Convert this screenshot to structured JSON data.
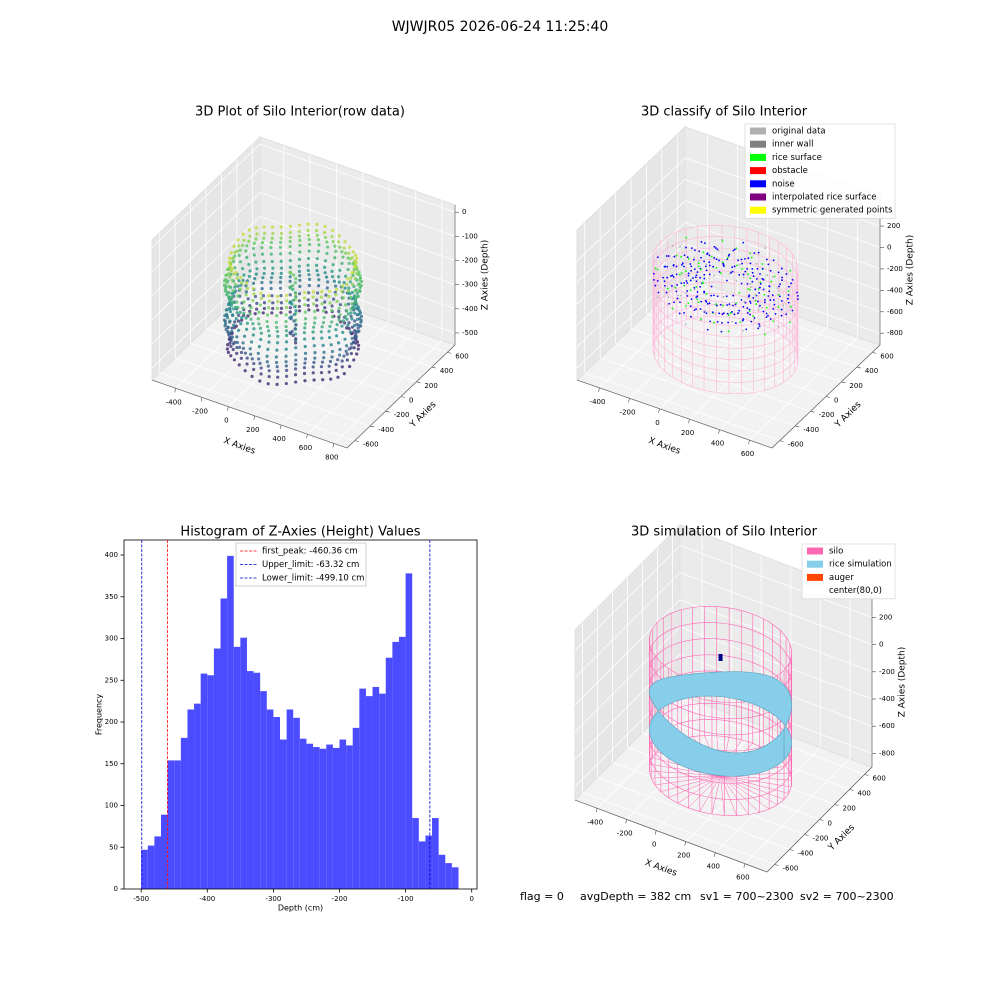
{
  "title": "WJWJR05 2026-06-24 11:25:40",
  "footer": [
    "flag = 0",
    "avgDepth = 382 cm",
    "sv1 = 700~2300",
    "sv2 = 700~2300"
  ],
  "chart_data": [
    {
      "type": "scatter3d",
      "title": "3D Plot of Silo Interior(row data)",
      "xlabel": "X Axies",
      "ylabel": "Y Axies",
      "zlabel": "Z Axies (Depth)",
      "xlim": [
        -580,
        900
      ],
      "ylim": [
        -700,
        700
      ],
      "zlim": [
        -550,
        30
      ],
      "xticks": [
        -400,
        -200,
        0,
        200,
        400,
        600,
        800
      ],
      "yticks": [
        -600,
        -400,
        -200,
        0,
        200,
        400,
        600
      ],
      "zticks": [
        0,
        -100,
        -200,
        -300,
        -400,
        -500
      ]
    },
    {
      "type": "classify3d",
      "title": "3D classify of Silo Interior",
      "xlabel": "X Axies",
      "ylabel": "Y Axies",
      "zlabel": "Z Axies (Depth)",
      "xlim": [
        -550,
        750
      ],
      "ylim": [
        -700,
        700
      ],
      "zlim": [
        -910,
        490
      ],
      "xticks": [
        -400,
        -200,
        0,
        200,
        400,
        600
      ],
      "yticks": [
        -600,
        -400,
        -200,
        0,
        200,
        400,
        600
      ],
      "zticks": [
        200,
        0,
        -200,
        -400,
        -600,
        -800
      ],
      "legend": [
        {
          "label": "original data",
          "color": "#b0b0b0"
        },
        {
          "label": "inner wall",
          "color": "#808080"
        },
        {
          "label": "rice surface",
          "color": "#00ff00"
        },
        {
          "label": "obstacle",
          "color": "#ff0000"
        },
        {
          "label": "noise",
          "color": "#0000ff"
        },
        {
          "label": "interpolated rice surface",
          "color": "#800080"
        },
        {
          "label": "symmetric generated points",
          "color": "#ffff00"
        }
      ],
      "wire_color": "#ffb6d9"
    },
    {
      "type": "histogram",
      "title": "Histogram of Z-Axies (Height) Values",
      "xlabel": "Depth (cm)",
      "ylabel": "Frequency",
      "color": "#4b4bff",
      "bins": [
        -500,
        -490,
        -480,
        -470,
        -460,
        -450,
        -440,
        -430,
        -420,
        -410,
        -400,
        -390,
        -380,
        -370,
        -360,
        -350,
        -340,
        -330,
        -320,
        -310,
        -300,
        -290,
        -280,
        -270,
        -260,
        -250,
        -240,
        -230,
        -220,
        -210,
        -200,
        -190,
        -180,
        -170,
        -160,
        -150,
        -140,
        -130,
        -120,
        -110,
        -100,
        -90,
        -80,
        -70,
        -60,
        -50,
        -40,
        -30,
        -20
      ],
      "counts": [
        47,
        52,
        63,
        89,
        154,
        154,
        181,
        215,
        222,
        258,
        256,
        288,
        348,
        399,
        290,
        301,
        261,
        259,
        237,
        215,
        206,
        179,
        215,
        205,
        180,
        174,
        170,
        168,
        173,
        169,
        179,
        172,
        193,
        240,
        231,
        242,
        234,
        277,
        296,
        302,
        378,
        85,
        57,
        64,
        85,
        41,
        31,
        26
      ],
      "xlim": [
        -526,
        8
      ],
      "ylim": [
        0,
        418
      ],
      "xticks": [
        -500,
        -400,
        -300,
        -200,
        -100,
        0
      ],
      "yticks": [
        0,
        50,
        100,
        150,
        200,
        250,
        300,
        350,
        400
      ],
      "lines": [
        {
          "value": -460.36,
          "label": "first_peak: -460.36 cm",
          "color": "#ff0000"
        },
        {
          "value": -63.32,
          "label": "Upper_limit: -63.32 cm",
          "color": "#0000cc"
        },
        {
          "value": -499.1,
          "label": "Lower_limit: -499.10 cm",
          "color": "#0000cc"
        }
      ]
    },
    {
      "type": "surface3d",
      "title": "3D simulation of Silo Interior",
      "xlabel": "X Axies",
      "ylabel": "Y Axies",
      "zlabel": "Z Axies (Depth)",
      "xlim": [
        -550,
        750
      ],
      "ylim": [
        -700,
        700
      ],
      "zlim": [
        -900,
        350
      ],
      "xticks": [
        -400,
        -200,
        0,
        200,
        400,
        600
      ],
      "yticks": [
        -600,
        -400,
        -200,
        0,
        200,
        400,
        600
      ],
      "zticks": [
        200,
        0,
        -200,
        -400,
        -600,
        -800
      ],
      "legend": [
        {
          "label": "silo",
          "color": "#ff69b4"
        },
        {
          "label": "rice simulation",
          "color": "#87ceeb"
        },
        {
          "label": "auger",
          "color": "#ff4500"
        },
        {
          "label": "center(80,0)",
          "color": "#ffffff"
        }
      ]
    }
  ]
}
